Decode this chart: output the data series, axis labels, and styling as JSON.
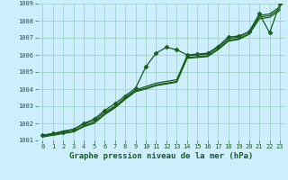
{
  "title": "Graphe pression niveau de la mer (hPa)",
  "background_color": "#cceeff",
  "grid_color": "#99ccbb",
  "line_color": "#1a5c1a",
  "xlim": [
    -0.5,
    23.5
  ],
  "ylim": [
    1001,
    1009
  ],
  "xticks": [
    0,
    1,
    2,
    3,
    4,
    5,
    6,
    7,
    8,
    9,
    10,
    11,
    12,
    13,
    14,
    15,
    16,
    17,
    18,
    19,
    20,
    21,
    22,
    23
  ],
  "yticks": [
    1001,
    1002,
    1003,
    1004,
    1005,
    1006,
    1007,
    1008,
    1009
  ],
  "series": [
    [
      1001.3,
      1001.4,
      1001.5,
      1001.65,
      1002.0,
      1002.25,
      1002.75,
      1003.15,
      1003.6,
      1004.05,
      1005.3,
      1006.1,
      1006.45,
      1006.3,
      1006.0,
      1006.05,
      1006.1,
      1006.5,
      1007.05,
      1007.1,
      1007.35,
      1008.4,
      1007.3,
      1009.0
    ],
    [
      1001.3,
      1001.4,
      1001.55,
      1001.65,
      1001.95,
      1002.15,
      1002.65,
      1003.0,
      1003.5,
      1003.95,
      1004.15,
      1004.35,
      1004.45,
      1004.55,
      1005.95,
      1006.0,
      1006.05,
      1006.45,
      1006.95,
      1007.05,
      1007.35,
      1008.3,
      1008.4,
      1008.8
    ],
    [
      1001.25,
      1001.35,
      1001.45,
      1001.55,
      1001.85,
      1002.05,
      1002.55,
      1002.95,
      1003.45,
      1003.9,
      1004.05,
      1004.25,
      1004.35,
      1004.45,
      1005.85,
      1005.9,
      1005.95,
      1006.35,
      1006.85,
      1006.95,
      1007.25,
      1008.2,
      1008.3,
      1008.7
    ],
    [
      1001.2,
      1001.3,
      1001.4,
      1001.5,
      1001.8,
      1002.0,
      1002.5,
      1002.9,
      1003.4,
      1003.85,
      1004.0,
      1004.2,
      1004.3,
      1004.4,
      1005.8,
      1005.85,
      1005.9,
      1006.3,
      1006.8,
      1006.9,
      1007.2,
      1008.1,
      1008.2,
      1008.6
    ]
  ],
  "marker": "D",
  "markersize": 2.5,
  "linewidth": 0.9,
  "tick_fontsize": 5,
  "label_fontsize": 6.5
}
